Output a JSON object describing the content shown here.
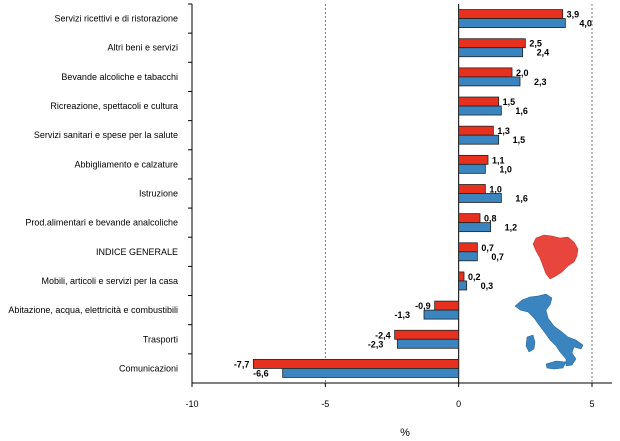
{
  "chart_data": {
    "type": "bar",
    "orientation": "horizontal",
    "categories": [
      "Servizi ricettivi e di ristorazione",
      "Altri beni e servizi",
      "Bevande alcoliche e tabacchi",
      "Ricreazione, spettacoli e cultura",
      "Servizi sanitari e spese per la salute",
      "Abbigliamento e calzature",
      "Istruzione",
      "Prod.alimentari e bevande analcoliche",
      "INDICE GENERALE",
      "Mobili, articoli e servizi per la casa",
      "Abitazione, acqua, elettricità e combustibili",
      "Trasporti",
      "Comunicazioni"
    ],
    "series": [
      {
        "color": "#e8301e",
        "values": [
          3.9,
          2.5,
          2.0,
          1.5,
          1.3,
          1.1,
          1.0,
          0.8,
          0.7,
          0.2,
          -0.9,
          -2.4,
          -7.7
        ]
      },
      {
        "color": "#3a85c0",
        "values": [
          4.0,
          2.4,
          2.3,
          1.6,
          1.5,
          1.0,
          1.6,
          1.2,
          0.7,
          0.3,
          -1.3,
          -2.3,
          -6.6
        ]
      }
    ],
    "value_labels": [
      [
        "3,9",
        "2,5",
        "2,0",
        "1,5",
        "1,3",
        "1,1",
        "1,0",
        "0,8",
        "0,7",
        "0,2",
        "-0,9",
        "-2,4",
        "-7,7"
      ],
      [
        "4,0",
        "2,4",
        "2,3",
        "1,6",
        "1,5",
        "1,0",
        "1,6",
        "1,2",
        "0,7",
        "0,3",
        "-1,3",
        "-2,3",
        "-6,6"
      ]
    ],
    "xticks": [
      -10,
      -5,
      0,
      5
    ],
    "xtick_labels": [
      "-10",
      "-5",
      "0",
      "5"
    ],
    "xlim": [
      -10,
      5
    ],
    "xlabel": "%",
    "ylabel": "",
    "title": "",
    "grid": "vertical dashed at -5 and 5",
    "legend": "none",
    "inset_maps": [
      "tuscany-map-icon",
      "italy-map-icon"
    ]
  }
}
